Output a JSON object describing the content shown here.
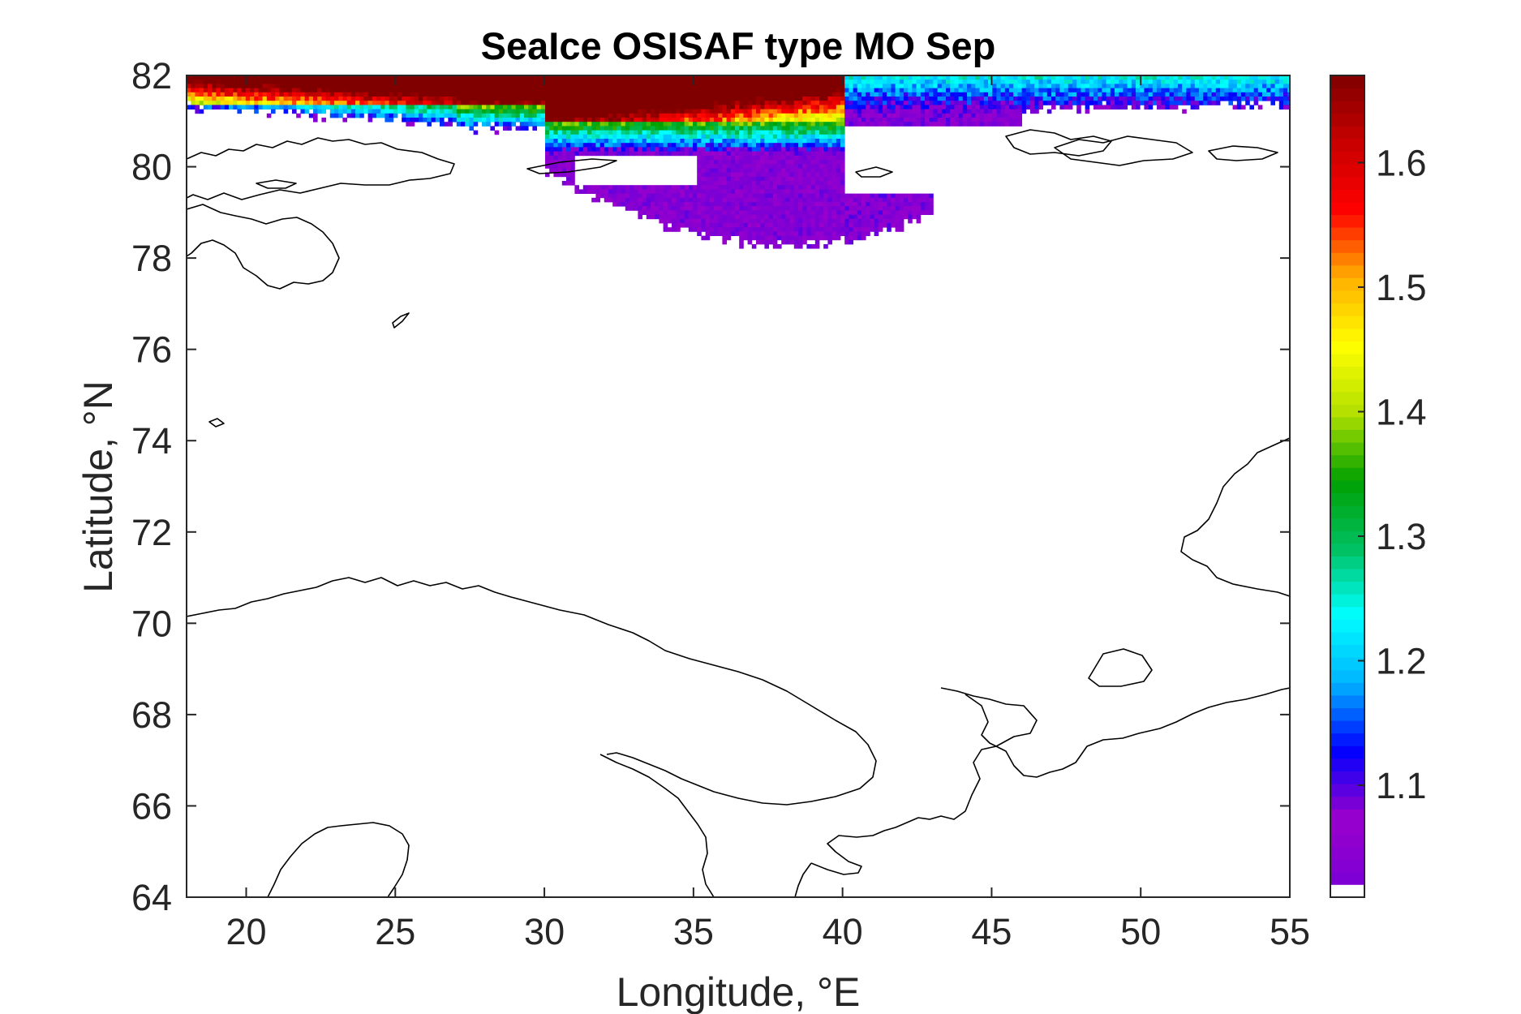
{
  "chart_data": {
    "type": "heatmap",
    "title": "SeaIce OSISAF type MO Sep",
    "xlabel": "Longitude, °E",
    "ylabel": "Latitude, °N",
    "xlim": [
      18,
      55
    ],
    "ylim": [
      64,
      82
    ],
    "xticks": [
      20,
      25,
      30,
      35,
      40,
      45,
      50,
      55
    ],
    "yticks": [
      64,
      66,
      68,
      70,
      72,
      74,
      76,
      78,
      80,
      82
    ],
    "colorbar": {
      "colormap": "jet-like (violet → blue → cyan → green → yellow → red → dark red)",
      "clim": [
        1.02,
        1.67
      ],
      "ticks": [
        1.1,
        1.2,
        1.3,
        1.4,
        1.5,
        1.6
      ],
      "lowest_bin_color": "#ffffff"
    },
    "field_summary": [
      {
        "region": "north of ~81.5°N, 18–27°E",
        "value": 1.63
      },
      {
        "region": "~81°N, 25–35°E",
        "value": 1.45
      },
      {
        "region": "~80.5–81°N, 30–40°E",
        "value": 1.3
      },
      {
        "region": "~81–82°N, 40–55°E",
        "value": 1.18
      },
      {
        "region": "~78–80°N, 30–46°E (Barents Sea ice tongue)",
        "value": 1.05
      }
    ],
    "grid": false
  },
  "colors": {
    "colormap_stops": [
      "#7b00d6",
      "#9a00cc",
      "#0000ff",
      "#00b4ff",
      "#00ffff",
      "#00c060",
      "#00a000",
      "#b4e000",
      "#ffff00",
      "#ffb000",
      "#ff0000",
      "#c80000",
      "#800000"
    ],
    "coastline": "#000000",
    "axes": "#262626"
  }
}
